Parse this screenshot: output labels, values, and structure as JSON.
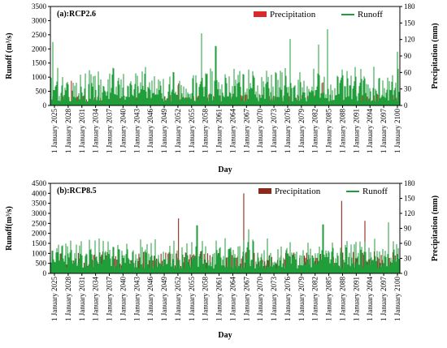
{
  "figure": {
    "panels": [
      {
        "label": "(a):RCP2.6",
        "left_axis_title": "Runoff (m³/s)",
        "right_axis_title": "Precipitation (mm)",
        "x_axis_title": "Day",
        "legend": [
          "Precipitation",
          "Runoff"
        ]
      },
      {
        "label": "(b):RCP8.5",
        "left_axis_title": "Runoff(m³/s)",
        "right_axis_title": "Precipitation (mm)",
        "x_axis_title": "Day",
        "legend": [
          "Precipitation",
          "Runoff"
        ]
      }
    ]
  },
  "chart_data": [
    {
      "type": "bar",
      "title": "(a):RCP2.6",
      "xlabel": "Day",
      "ylabel": "Runoff (m³/s)",
      "y2label": "Precipitation (mm)",
      "x_ticks": [
        "1 January 2025",
        "1 January 2028",
        "1 January 2031",
        "1 January 2034",
        "1 January 2037",
        "1 January 2040",
        "1 January 2043",
        "1 January 2046",
        "1 January 2049",
        "1 January 2052",
        "1 January 2055",
        "1 January 2058",
        "1 January 2061",
        "1 January 2064",
        "1 January 2067",
        "1 January 2070",
        "1 January 2073",
        "1 January 2076",
        "1 January 2079",
        "1 January 2082",
        "1 January 2085",
        "1 January 2088",
        "1 January 2091",
        "1 January 2094",
        "1 January 2097",
        "1 January 2100"
      ],
      "ylim": [
        0,
        3500
      ],
      "yticks": [
        0,
        500,
        1000,
        1500,
        2000,
        2500,
        3000,
        3500
      ],
      "y2lim": [
        180,
        0
      ],
      "y2ticks": [
        0,
        30,
        60,
        90,
        120,
        150,
        180
      ],
      "y2_inverted": false,
      "legend_position": "top-right",
      "series": [
        {
          "name": "Precipitation",
          "axis": "right",
          "color": "#d62b2b",
          "peaks": [
            {
              "date": "2029-07",
              "value": 45
            },
            {
              "date": "2052-06",
              "value": 40
            },
            {
              "date": "2083-07",
              "value": 42
            }
          ]
        },
        {
          "name": "Runoff",
          "axis": "left",
          "color": "#1f9e3a",
          "peaks": [
            {
              "date": "2025-07",
              "value": 2250
            },
            {
              "date": "2057-06",
              "value": 2550
            },
            {
              "date": "2060-07",
              "value": 2100
            },
            {
              "date": "2076-07",
              "value": 2350
            },
            {
              "date": "2084-07",
              "value": 2700
            },
            {
              "date": "2082-07",
              "value": 2150
            },
            {
              "date": "2099-07",
              "value": 1900
            }
          ],
          "typical_range": [
            100,
            1400
          ]
        }
      ]
    },
    {
      "type": "bar",
      "title": "(b):RCP8.5",
      "xlabel": "Day",
      "ylabel": "Runoff(m³/s)",
      "y2label": "Precipitation (mm)",
      "x_ticks": [
        "1 January 2025",
        "1 January 2028",
        "1 January 2031",
        "1 January 2034",
        "1 January 2037",
        "1 January 2040",
        "1 January 2043",
        "1 January 2046",
        "1 January 2049",
        "1 January 2052",
        "1 January 2055",
        "1 January 2058",
        "1 January 2061",
        "1 January 2064",
        "1 January 2067",
        "1 January 2070",
        "1 January 2073",
        "1 January 2076",
        "1 January 2079",
        "1 January 2082",
        "1 January 2085",
        "1 January 2088",
        "1 January 2091",
        "1 January 2094",
        "1 January 2097",
        "1 January 2100"
      ],
      "ylim": [
        0,
        4500
      ],
      "yticks": [
        0,
        500,
        1000,
        1500,
        2000,
        2500,
        3000,
        3500,
        4000,
        4500
      ],
      "y2lim": [
        0,
        180
      ],
      "y2ticks": [
        0,
        30,
        60,
        90,
        120,
        150,
        180
      ],
      "legend_position": "top-right",
      "series": [
        {
          "name": "Precipitation",
          "axis": "right",
          "color": "#8b2a1a",
          "peaks": [
            {
              "date": "2066-08",
              "value": 160
            },
            {
              "date": "2087-07",
              "value": 145
            },
            {
              "date": "2052-07",
              "value": 110
            },
            {
              "date": "2092-07",
              "value": 105
            }
          ]
        },
        {
          "name": "Runoff",
          "axis": "left",
          "color": "#1f9e3a",
          "peaks": [
            {
              "date": "2056-07",
              "value": 2400
            },
            {
              "date": "2083-07",
              "value": 2450
            },
            {
              "date": "2097-07",
              "value": 2550
            },
            {
              "date": "2067-07",
              "value": 2200
            }
          ],
          "typical_range": [
            200,
            1800
          ]
        }
      ]
    }
  ]
}
